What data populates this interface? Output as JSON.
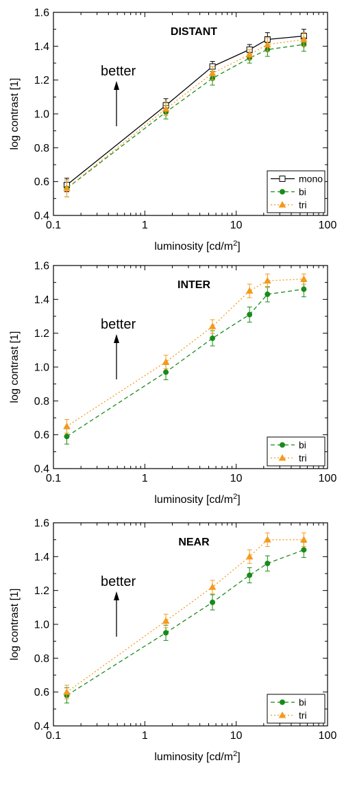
{
  "chart_data": [
    {
      "type": "line",
      "title": "DISTANT",
      "xlabel": "luminosity [cd/m",
      "xlabel_sup": "2",
      "xlabel_end": "]",
      "ylabel": "log contrast [1]",
      "xscale": "log",
      "xlim": [
        0.1,
        100
      ],
      "ylim": [
        0.4,
        1.6
      ],
      "xticks": [
        0.1,
        1,
        10,
        100
      ],
      "xtick_labels": [
        "0.1",
        "1",
        "10",
        "100"
      ],
      "yticks": [
        0.4,
        0.6,
        0.8,
        1.0,
        1.2,
        1.4,
        1.6
      ],
      "ytick_labels": [
        "0.4",
        "0.6",
        "0.8",
        "1.0",
        "1.2",
        "1.4",
        "1.6"
      ],
      "annotation": "better",
      "legend_position": "bottom-right",
      "x": [
        0.14,
        1.7,
        5.5,
        14,
        22,
        55
      ],
      "series": [
        {
          "name": "mono",
          "color": "#000000",
          "marker": "open-square",
          "line": "solid",
          "values": [
            0.58,
            1.05,
            1.28,
            1.38,
            1.44,
            1.46
          ],
          "errors": [
            0.04,
            0.04,
            0.03,
            0.03,
            0.04,
            0.04
          ]
        },
        {
          "name": "bi",
          "color": "#1a8a1a",
          "marker": "filled-circle",
          "line": "dashed",
          "values": [
            0.56,
            1.01,
            1.21,
            1.33,
            1.38,
            1.41
          ],
          "errors": [
            0.05,
            0.04,
            0.04,
            0.03,
            0.04,
            0.04
          ]
        },
        {
          "name": "tri",
          "color": "#f59a1c",
          "marker": "filled-triangle",
          "line": "dotted",
          "values": [
            0.56,
            1.03,
            1.24,
            1.35,
            1.41,
            1.44
          ],
          "errors": [
            0.05,
            0.04,
            0.04,
            0.03,
            0.04,
            0.04
          ]
        }
      ]
    },
    {
      "type": "line",
      "title": "INTER",
      "xlabel": "luminosity [cd/m",
      "xlabel_sup": "2",
      "xlabel_end": "]",
      "ylabel": "log contrast [1]",
      "xscale": "log",
      "xlim": [
        0.1,
        100
      ],
      "ylim": [
        0.4,
        1.6
      ],
      "xticks": [
        0.1,
        1,
        10,
        100
      ],
      "xtick_labels": [
        "0.1",
        "1",
        "10",
        "100"
      ],
      "yticks": [
        0.4,
        0.6,
        0.8,
        1.0,
        1.2,
        1.4,
        1.6
      ],
      "ytick_labels": [
        "0.4",
        "0.6",
        "0.8",
        "1.0",
        "1.2",
        "1.4",
        "1.6"
      ],
      "annotation": "better",
      "legend_position": "bottom-right",
      "x": [
        0.14,
        1.7,
        5.5,
        14,
        22,
        55
      ],
      "series": [
        {
          "name": "bi",
          "color": "#1a8a1a",
          "marker": "filled-circle",
          "line": "dashed",
          "values": [
            0.59,
            0.97,
            1.17,
            1.31,
            1.43,
            1.46
          ],
          "errors": [
            0.045,
            0.045,
            0.045,
            0.045,
            0.045,
            0.045
          ]
        },
        {
          "name": "tri",
          "color": "#f59a1c",
          "marker": "filled-triangle",
          "line": "dotted",
          "values": [
            0.65,
            1.03,
            1.24,
            1.45,
            1.51,
            1.52
          ],
          "errors": [
            0.04,
            0.04,
            0.04,
            0.04,
            0.04,
            0.03
          ]
        }
      ]
    },
    {
      "type": "line",
      "title": "NEAR",
      "xlabel": "luminosity [cd/m",
      "xlabel_sup": "2",
      "xlabel_end": "]",
      "ylabel": "log contrast [1]",
      "xscale": "log",
      "xlim": [
        0.1,
        100
      ],
      "ylim": [
        0.4,
        1.6
      ],
      "xticks": [
        0.1,
        1,
        10,
        100
      ],
      "xtick_labels": [
        "0.1",
        "1",
        "10",
        "100"
      ],
      "yticks": [
        0.4,
        0.6,
        0.8,
        1.0,
        1.2,
        1.4,
        1.6
      ],
      "ytick_labels": [
        "0.4",
        "0.6",
        "0.8",
        "1.0",
        "1.2",
        "1.4",
        "1.6"
      ],
      "annotation": "better",
      "legend_position": "bottom-right",
      "x": [
        0.14,
        1.7,
        5.5,
        14,
        22,
        55
      ],
      "series": [
        {
          "name": "bi",
          "color": "#1a8a1a",
          "marker": "filled-circle",
          "line": "dashed",
          "values": [
            0.58,
            0.95,
            1.13,
            1.29,
            1.36,
            1.44
          ],
          "errors": [
            0.045,
            0.045,
            0.045,
            0.045,
            0.045,
            0.045
          ]
        },
        {
          "name": "tri",
          "color": "#f59a1c",
          "marker": "filled-triangle",
          "line": "dotted",
          "values": [
            0.6,
            1.02,
            1.22,
            1.4,
            1.5,
            1.5
          ],
          "errors": [
            0.04,
            0.04,
            0.04,
            0.04,
            0.04,
            0.04
          ]
        }
      ]
    }
  ]
}
